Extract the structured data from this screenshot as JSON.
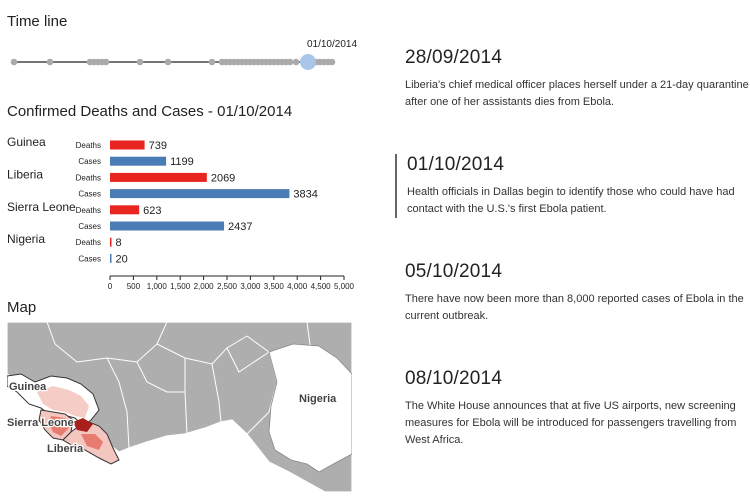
{
  "timeline": {
    "title": "Time line",
    "selected_label": "01/10/2014",
    "colors": {
      "line": "#222222",
      "dot": "#aaaaaa",
      "selected": "#a9c6e8"
    }
  },
  "chart_data": {
    "type": "bar",
    "title": "Confirmed Deaths and Cases - 01/10/2014",
    "categories": [
      "Guinea",
      "Liberia",
      "Sierra Leone",
      "Nigeria"
    ],
    "series": [
      {
        "name": "Deaths",
        "color": "#e8251f",
        "values": [
          739,
          2069,
          623,
          8
        ]
      },
      {
        "name": "Cases",
        "color": "#4a7db5",
        "values": [
          1199,
          3834,
          2437,
          20
        ]
      }
    ],
    "xlim": [
      0,
      5000
    ],
    "xticks": [
      "0",
      "500",
      "1,000",
      "1,500",
      "2,000",
      "2,500",
      "3,000",
      "3,500",
      "4,000",
      "4,500",
      "5,000"
    ],
    "xlabel": "",
    "ylabel": ""
  },
  "map": {
    "title": "Map",
    "labels": {
      "guinea": "Guinea",
      "sierra_leone": "Sierra Leone",
      "liberia": "Liberia",
      "nigeria": "Nigeria"
    },
    "colors": {
      "sea": "#ffffff",
      "land": "#aeaeae",
      "highlight": "#ffffff",
      "heat_light": "#f4c6c0",
      "heat_mid": "#e77b70",
      "heat_dark": "#a8201a"
    }
  },
  "events": [
    {
      "date": "28/09/2014",
      "text": "Liberia's chief medical officer places herself under a 21-day quarantine after one of her assistants dies from Ebola."
    },
    {
      "date": "01/10/2014",
      "text": "Health officials in Dallas begin to identify those who could have had contact with the U.S.'s first Ebola patient."
    },
    {
      "date": "05/10/2014",
      "text": "There have now been more than 8,000 reported cases of Ebola in the current outbreak."
    },
    {
      "date": "08/10/2014",
      "text": "The White House announces that at five US airports, new screening measures for Ebola will be introduced for passengers travelling from West Africa."
    }
  ]
}
